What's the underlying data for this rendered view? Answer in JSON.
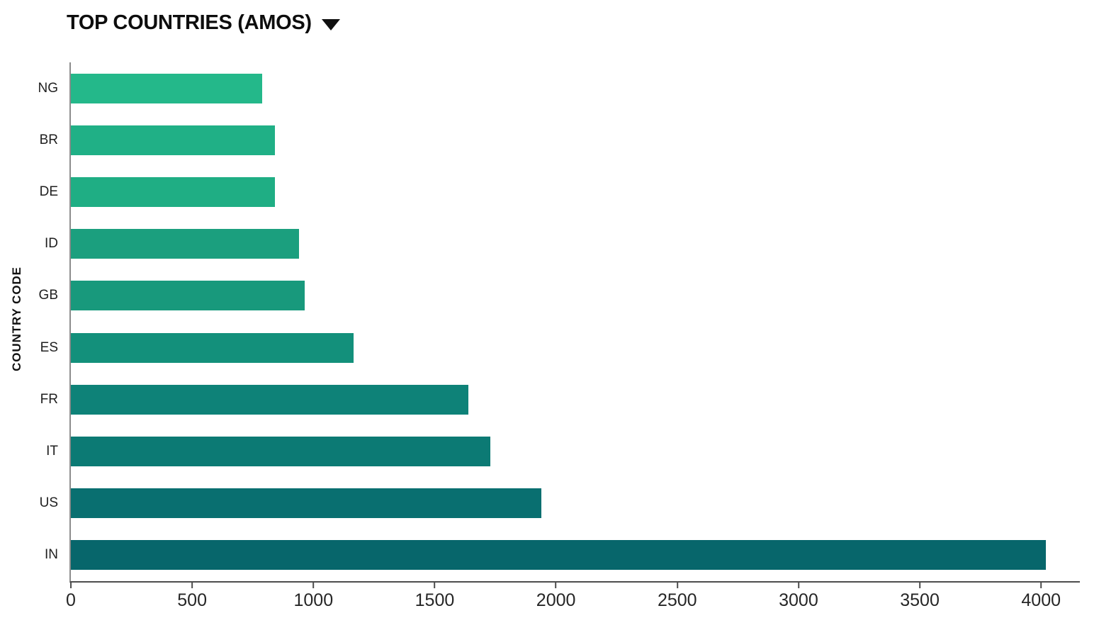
{
  "header": {
    "title": "TOP COUNTRIES (AMOS)",
    "dropdown_icon": "caret-down"
  },
  "chart_data": {
    "type": "bar",
    "orientation": "horizontal",
    "title": "TOP COUNTRIES (AMOS)",
    "xlabel": "",
    "ylabel": "COUNTRY CODE",
    "categories": [
      "NG",
      "BR",
      "DE",
      "ID",
      "GB",
      "ES",
      "FR",
      "IT",
      "US",
      "IN"
    ],
    "values": [
      790,
      840,
      840,
      940,
      965,
      1165,
      1640,
      1730,
      1940,
      4020
    ],
    "bar_colors": [
      "#24b88a",
      "#20b086",
      "#1fae84",
      "#1b9f7e",
      "#18997c",
      "#13907b",
      "#0e8278",
      "#0c7a74",
      "#096f70",
      "#07666b"
    ],
    "xlim": [
      0,
      4160
    ],
    "xticks": [
      0,
      500,
      1000,
      1500,
      2000,
      2500,
      3000,
      3500,
      4000
    ],
    "grid": false,
    "legend": null,
    "axis_line_color": "#4d4d4d",
    "yaxis_line_color": "#8c8c8c"
  }
}
